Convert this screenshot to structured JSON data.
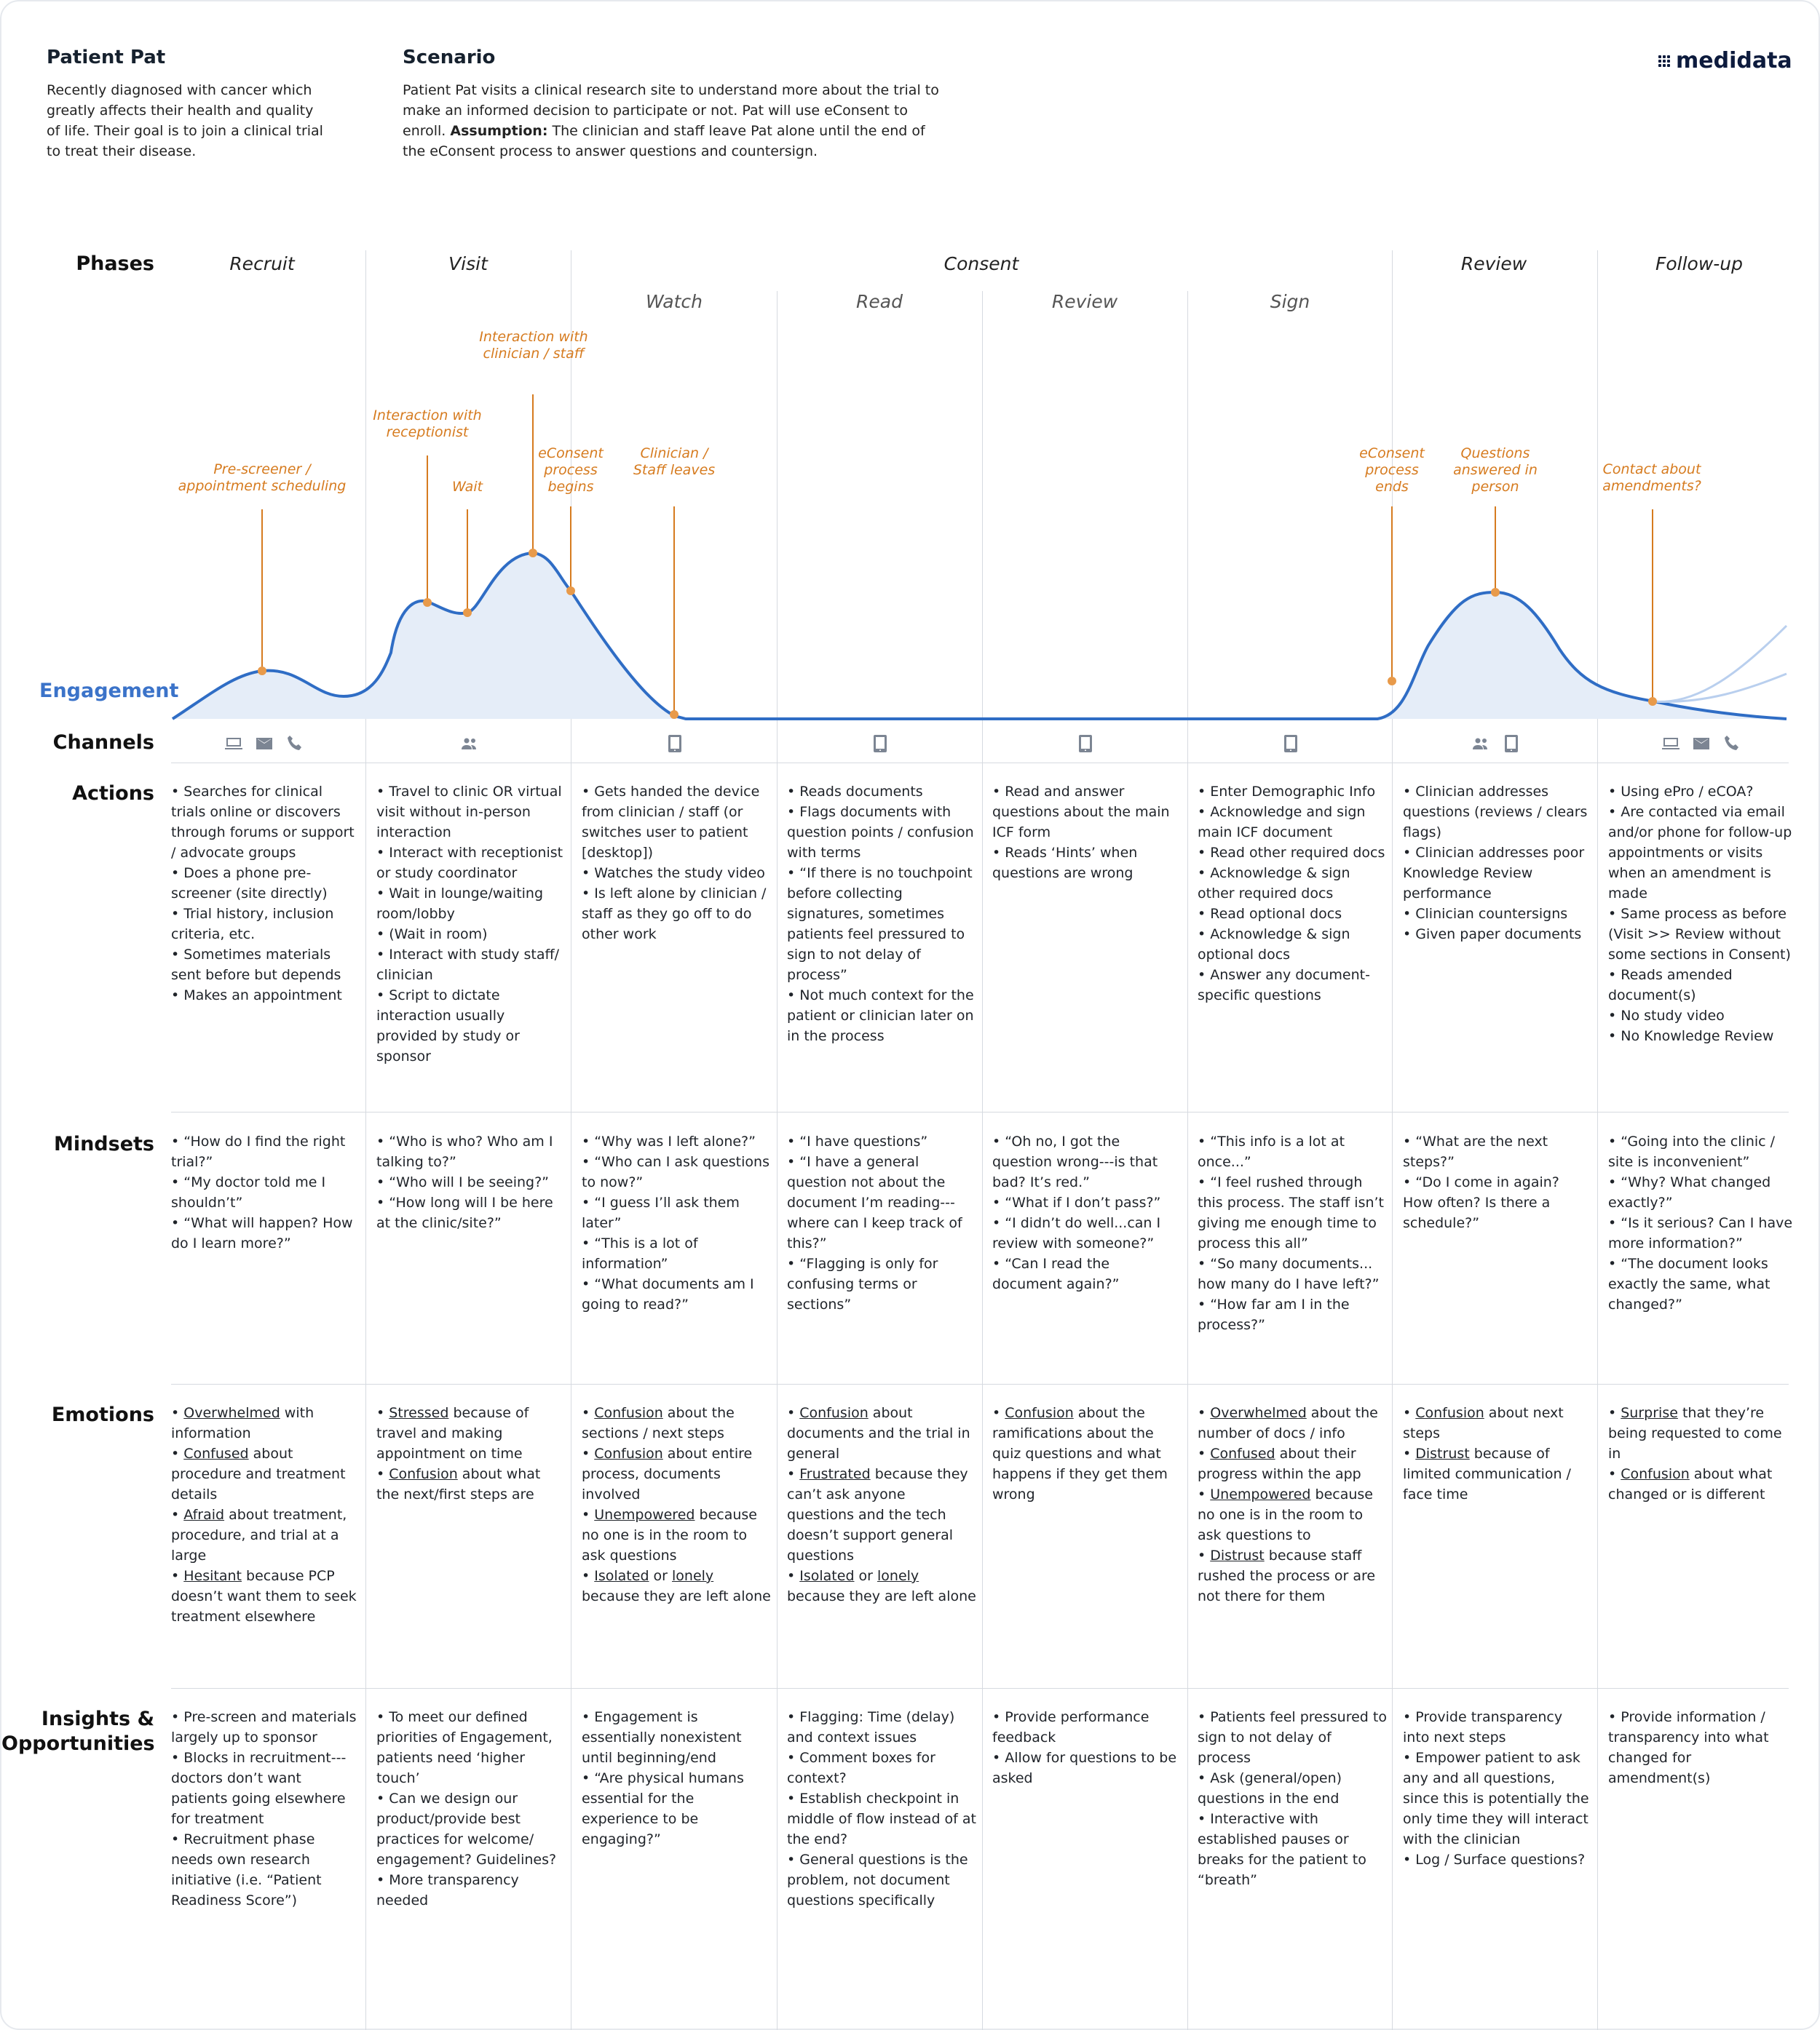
{
  "persona": {
    "title": "Patient Pat",
    "description": "Recently diagnosed with cancer which greatly affects their health and quality of life. Their goal is to join a clinical trial to treat their disease."
  },
  "scenario": {
    "title": "Scenario",
    "description": "Patient Pat visits a clinical research site to understand more about the trial to make an informed decision to participate or not. Pat will use eConsent to enroll.",
    "assumption_label": "Assumption:",
    "assumption_text": "The clinician and staff leave Pat alone until the end of the eConsent process to answer questions and countersign."
  },
  "brand": {
    "name": "medidata"
  },
  "row_labels": {
    "phases": "Phases",
    "engagement": "Engagement",
    "channels": "Channels",
    "actions": "Actions",
    "mindsets": "Mindsets",
    "emotions": "Emotions",
    "insights": "Insights & Opportunities"
  },
  "phases": {
    "recruit": "Recruit",
    "visit": "Visit",
    "consent": "Consent",
    "review": "Review",
    "followup": "Follow-up"
  },
  "subphases": [
    "Watch",
    "Read",
    "Review",
    "Sign"
  ],
  "annotations": [
    "Pre-screener / appointment scheduling",
    "Interaction with receptionist",
    "Wait",
    "Interaction with clinician / staff",
    "eConsent process begins",
    "Clinician / Staff leaves",
    "eConsent process ends",
    "Questions answered in person",
    "Contact about amendments?"
  ],
  "channels": [
    [
      "laptop-icon",
      "mail-icon",
      "phone-icon"
    ],
    [
      "people-icon"
    ],
    [
      "tablet-icon"
    ],
    [
      "tablet-icon"
    ],
    [
      "tablet-icon"
    ],
    [
      "tablet-icon"
    ],
    [
      "people-icon",
      "tablet-icon"
    ],
    [
      "laptop-icon",
      "mail-icon",
      "phone-icon"
    ]
  ],
  "colors": {
    "curve": "#2f6dc5",
    "fill": "#e5edf8",
    "accent": "#d67b1f",
    "grid": "#d6dae0"
  },
  "actions": [
    [
      "Searches for clinical trials online or discovers through forums or support / advocate groups",
      "Does a phone pre-screener (site directly)",
      "Trial history, inclusion criteria, etc.",
      "Sometimes materials sent before but depends",
      "Makes an appointment"
    ],
    [
      "Travel to clinic OR virtual visit without in-person interaction",
      "Interact with receptionist or study coordinator",
      "Wait in lounge/waiting room/lobby",
      "(Wait in room)",
      "Interact with study staff/ clinician",
      "Script to dictate interaction usually provided by study or sponsor"
    ],
    [
      "Gets handed the device from clinician / staff (or switches user to patient [desktop])",
      "Watches the study video",
      "Is left alone by clinician / staff as they go off to do other work"
    ],
    [
      "Reads documents",
      "Flags documents with question points / confusion with terms",
      "“If there is no touchpoint before collecting signatures, sometimes patients feel pressured to sign to not delay of process”",
      "Not much context for the patient or clinician later on in the process"
    ],
    [
      "Read and answer questions about the main ICF form",
      "Reads ‘Hints’ when questions are wrong"
    ],
    [
      "Enter Demographic Info",
      "Acknowledge and sign main ICF document",
      "Read other required docs",
      "Acknowledge & sign other required docs",
      "Read optional docs",
      "Acknowledge & sign optional docs",
      "Answer any document-specific questions"
    ],
    [
      "Clinician addresses questions (reviews / clears flags)",
      "Clinician addresses poor Knowledge Review performance",
      "Clinician countersigns",
      "Given paper documents"
    ],
    [
      "Using ePro / eCOA?",
      "Are contacted via email and/or phone for follow-up appointments or visits when an amendment is made",
      "Same process as before (Visit >> Review without some sections in Consent)",
      "Reads amended document(s)",
      "No study video",
      "No Knowledge Review"
    ]
  ],
  "mindsets": [
    [
      "“How do I find the right trial?”",
      "“My doctor told me I shouldn’t”",
      "“What will happen? How do I learn more?”"
    ],
    [
      "“Who is who? Who am I talking to?”",
      "“Who will I be seeing?”",
      "“How long will I be here at the clinic/site?”"
    ],
    [
      "“Why was I left alone?”",
      "“Who can I ask questions to now?”",
      "“I guess I’ll ask them later”",
      "“This is a lot of information”",
      "“What documents am I going to read?”"
    ],
    [
      "“I have questions”",
      "“I have a general question not about the document I’m reading---where can I keep track of this?”",
      "“Flagging is only for confusing terms or sections”"
    ],
    [
      "“Oh no, I got the question wrong---is that bad? It’s red.”",
      "“What if I don’t pass?”",
      "“I didn’t do well...can I review with someone?”",
      "“Can I read the document again?”"
    ],
    [
      "“This info is a lot at once...”",
      "“I feel rushed through this process. The staff isn’t giving me enough time to process this all”",
      "“So many documents... how many do I have left?”",
      "“How far am I in the process?”"
    ],
    [
      "“What are the next steps?”",
      "“Do I come in again? How often? Is there a schedule?”"
    ],
    [
      "“Going into the clinic / site is inconvenient”",
      "“Why? What changed exactly?”",
      "“Is it serious? Can I have more information?”",
      "“The document looks exactly the same, what changed?”"
    ]
  ],
  "emotions": [
    [
      [
        "Overwhelmed",
        " with information"
      ],
      [
        "Confused",
        " about procedure and treatment details"
      ],
      [
        "Afraid",
        " about treatment, procedure, and trial at a large"
      ],
      [
        "Hesitant",
        " because PCP doesn’t want them to seek treatment elsewhere"
      ]
    ],
    [
      [
        "Stressed",
        " because of travel and making appointment on time"
      ],
      [
        "Confusion",
        " about what the next/first steps are"
      ]
    ],
    [
      [
        "Confusion",
        " about the sections / next steps"
      ],
      [
        "Confusion",
        " about entire process, documents involved"
      ],
      [
        "Unempowered",
        " because no one is in the room to ask questions"
      ],
      [
        "Isolated",
        " or ",
        "lonely",
        " because they are left alone"
      ]
    ],
    [
      [
        "Confusion",
        " about documents and the trial in general"
      ],
      [
        "Frustrated",
        " because they can’t ask anyone questions and the tech doesn’t support general questions"
      ],
      [
        "Isolated",
        " or ",
        "lonely",
        " because they are left alone"
      ]
    ],
    [
      [
        "Confusion",
        " about the ramifications about the quiz questions and what happens if they get them wrong"
      ]
    ],
    [
      [
        "Overwhelmed",
        " about the number of docs / info"
      ],
      [
        "Confused",
        " about their progress within the app"
      ],
      [
        "Unempowered",
        " because no one is in the room to ask questions to"
      ],
      [
        "Distrust",
        " because staff rushed the process or are not there for them"
      ]
    ],
    [
      [
        "Confusion",
        " about next steps"
      ],
      [
        "Distrust",
        " because of limited communication / face time"
      ]
    ],
    [
      [
        "Surprise",
        " that they’re being requested to come in"
      ],
      [
        "Confusion",
        " about what changed or is different"
      ]
    ]
  ],
  "insights": [
    [
      "Pre-screen and materials largely up to sponsor",
      "Blocks in recruitment---doctors don’t want patients going elsewhere for treatment",
      "Recruitment phase needs own research initiative (i.e. “Patient Readiness Score”)"
    ],
    [
      "To meet our defined priorities of Engagement, patients need ‘higher touch’",
      "Can we design our product/provide best practices for welcome/ engagement? Guidelines?",
      "More transparency needed"
    ],
    [
      "Engagement is essentially nonexistent until beginning/end",
      "“Are physical humans essential for the experience to be engaging?”"
    ],
    [
      "Flagging: Time (delay) and context issues",
      "Comment boxes for context?",
      "Establish checkpoint in middle of flow instead of at the end?",
      "General questions is the problem, not document questions specifically"
    ],
    [
      "Provide performance feedback",
      "Allow for questions to be asked"
    ],
    [
      "Patients feel pressured to sign to not delay of process",
      "Ask (general/open) questions in the end",
      "Interactive with established pauses or breaks for the patient to “breath”"
    ],
    [
      "Provide transparency into next steps",
      "Empower patient to ask any and all questions, since this is potentially the only time they will interact with the clinician",
      "Log / Surface questions?"
    ],
    [
      "Provide information / transparency into what changed for amendment(s)"
    ]
  ]
}
